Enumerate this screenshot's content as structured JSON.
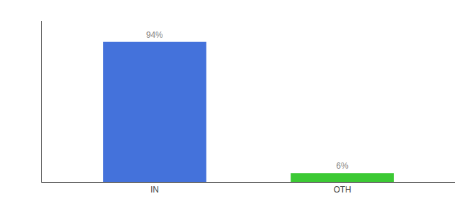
{
  "chart_data": {
    "type": "bar",
    "categories": [
      "IN",
      "OTH"
    ],
    "values": [
      94,
      6
    ],
    "value_labels": [
      "94%",
      "6%"
    ],
    "colors": [
      "#4472db",
      "#3cc934"
    ],
    "ylim": [
      0,
      108
    ],
    "data_labels": true,
    "tick_labels": "x",
    "grid": false
  }
}
